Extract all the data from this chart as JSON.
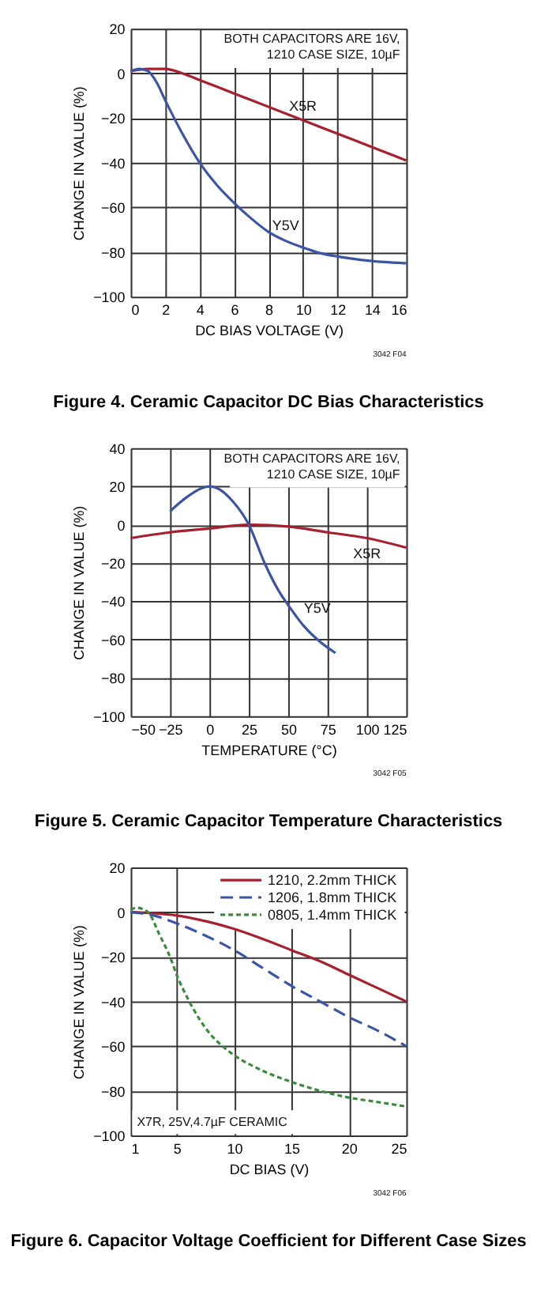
{
  "chart_data": [
    {
      "type": "line",
      "title": "Figure 4. Ceramic Capacitor DC Bias Characteristics",
      "xlabel": "DC BIAS VOLTAGE (V)",
      "ylabel": "CHANGE IN VALUE (%)",
      "annotations": [
        "BOTH CAPACITORS ARE 16V,\n1210 CASE SIZE, 10µF",
        "3042 F04"
      ],
      "xlim": [
        0,
        16
      ],
      "xticks": [
        0,
        2,
        4,
        6,
        8,
        10,
        12,
        14,
        16
      ],
      "ylim": [
        -100,
        20
      ],
      "yticks": [
        -100,
        -80,
        -60,
        -40,
        -20,
        0,
        20
      ],
      "grid": true,
      "legend": false,
      "series": [
        {
          "name": "X5R",
          "color": "#a8202f",
          "x": [
            0,
            1,
            1.5,
            2,
            3,
            4,
            6,
            8,
            10,
            12,
            14,
            16
          ],
          "values": [
            1,
            2,
            2,
            2,
            0,
            -3,
            -9,
            -15,
            -21,
            -27,
            -33,
            -39
          ]
        },
        {
          "name": "Y5V",
          "color": "#3a55a4",
          "x": [
            0,
            0.5,
            1,
            1.5,
            2,
            3,
            4,
            5,
            6,
            7,
            8,
            9,
            10,
            11,
            12,
            14,
            16
          ],
          "values": [
            1,
            2,
            1,
            -4,
            -12,
            -27,
            -40,
            -50,
            -58,
            -65,
            -71,
            -75,
            -78,
            -80.5,
            -82,
            -84,
            -85
          ]
        }
      ]
    },
    {
      "type": "line",
      "title": "Figure 5. Ceramic Capacitor Temperature Characteristics",
      "xlabel": "TEMPERATURE (°C)",
      "ylabel": "CHANGE IN VALUE (%)",
      "annotations": [
        "BOTH CAPACITORS ARE 16V,\n1210 CASE SIZE, 10µF",
        "3042 F05"
      ],
      "xlim": [
        -50,
        125
      ],
      "xticks": [
        -50,
        -25,
        0,
        25,
        50,
        75,
        100,
        125
      ],
      "ylim": [
        -100,
        40
      ],
      "yticks": [
        -100,
        -80,
        -60,
        -40,
        -20,
        0,
        20,
        40
      ],
      "grid": true,
      "legend": false,
      "series": [
        {
          "name": "X5R",
          "color": "#a8202f",
          "x": [
            -50,
            -25,
            0,
            25,
            50,
            75,
            100,
            125
          ],
          "values": [
            -7,
            -4,
            -2,
            0,
            -1,
            -4,
            -7,
            -12
          ]
        },
        {
          "name": "Y5V",
          "color": "#3a55a4",
          "x": [
            -25,
            -15,
            -5,
            0,
            5,
            15,
            25,
            35,
            45,
            50,
            60,
            70,
            80
          ],
          "values": [
            7,
            14,
            19,
            20,
            19,
            12,
            0,
            -20,
            -36,
            -42,
            -53,
            -61,
            -67
          ]
        }
      ]
    },
    {
      "type": "line",
      "title": "Figure 6. Capacitor Voltage Coefficient for Different Case Sizes",
      "xlabel": "DC BIAS (V)",
      "ylabel": "CHANGE IN VALUE (%)",
      "annotations": [
        "X7R, 25V,4.7µF CERAMIC",
        "3042 F06"
      ],
      "xlim": [
        1,
        25
      ],
      "xticks": [
        1,
        5,
        10,
        15,
        20,
        25
      ],
      "ylim": [
        -100,
        20
      ],
      "yticks": [
        -100,
        -80,
        -60,
        -40,
        -20,
        0,
        20
      ],
      "grid": true,
      "legend": "top right",
      "series": [
        {
          "name": "1210, 2.2mm THICK",
          "color": "#a8202f",
          "line_style": "solid",
          "x": [
            1,
            3,
            5,
            7.5,
            10,
            12.5,
            15,
            17.5,
            20,
            22.5,
            25
          ],
          "values": [
            0,
            -0.5,
            -1.5,
            -4,
            -7.5,
            -12,
            -17,
            -22,
            -28,
            -34,
            -40
          ]
        },
        {
          "name": "1206, 1.8mm THICK",
          "color": "#3a55a4",
          "line_style": "dashed",
          "x": [
            1,
            3,
            5,
            7.5,
            10,
            12.5,
            15,
            17.5,
            20,
            22.5,
            25
          ],
          "values": [
            0,
            -1.5,
            -5,
            -10.5,
            -17,
            -25,
            -33,
            -40,
            -47,
            -53,
            -60
          ]
        },
        {
          "name": "0805, 1.4mm THICK",
          "color": "#3a8a3a",
          "line_style": "dotted",
          "x": [
            1,
            1.5,
            2.5,
            3.5,
            4.5,
            5,
            6,
            7,
            8,
            9,
            10,
            12.5,
            15,
            17.5,
            20,
            22.5,
            25
          ],
          "values": [
            1,
            2,
            0,
            -10,
            -21,
            -28,
            -39,
            -48,
            -55,
            -60,
            -64,
            -71,
            -76,
            -80,
            -83,
            -85,
            -87
          ]
        }
      ]
    }
  ]
}
